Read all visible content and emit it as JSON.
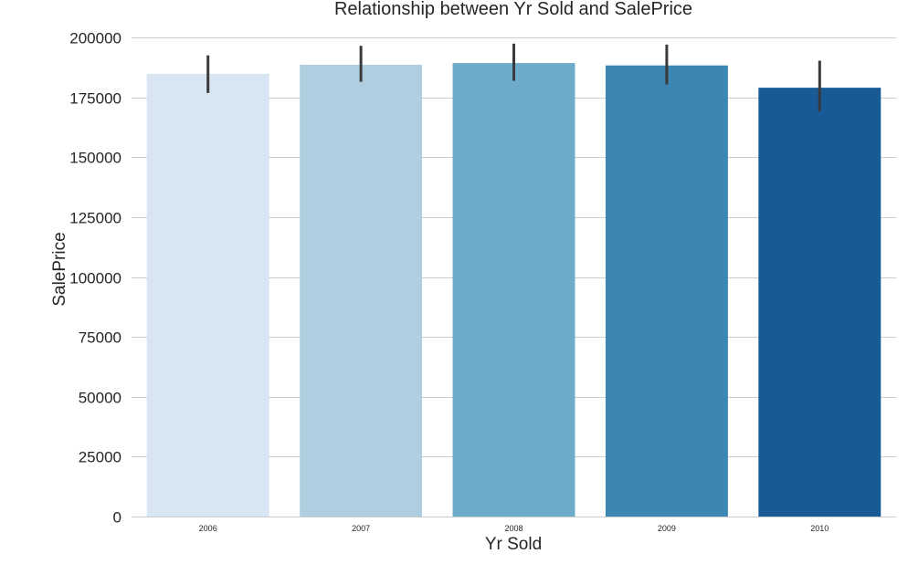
{
  "chart_data": {
    "type": "bar",
    "title": "Relationship between Yr Sold and SalePrice",
    "xlabel": "Yr Sold",
    "ylabel": "SalePrice",
    "categories": [
      "2006",
      "2007",
      "2008",
      "2009",
      "2010"
    ],
    "values": [
      184800,
      188600,
      189300,
      188300,
      179000
    ],
    "error_bars": [
      {
        "low": 176800,
        "high": 192500
      },
      {
        "low": 181500,
        "high": 196500
      },
      {
        "low": 181900,
        "high": 197400
      },
      {
        "low": 180400,
        "high": 197000
      },
      {
        "low": 169200,
        "high": 190300
      }
    ],
    "colors": [
      "#d7e6f2",
      "#afcfe1",
      "#6eabcb",
      "#3b86b3",
      "#185a95"
    ],
    "error_bar_color": "#3a3a3a",
    "grid_color": "#cccccc",
    "ylim": [
      0,
      200000
    ],
    "yticks": [
      0,
      25000,
      50000,
      75000,
      100000,
      125000,
      150000,
      175000,
      200000
    ],
    "ytick_labels": [
      "0",
      "25000",
      "50000",
      "75000",
      "100000",
      "125000",
      "150000",
      "175000",
      "200000"
    ],
    "grid": true,
    "legend": null
  }
}
